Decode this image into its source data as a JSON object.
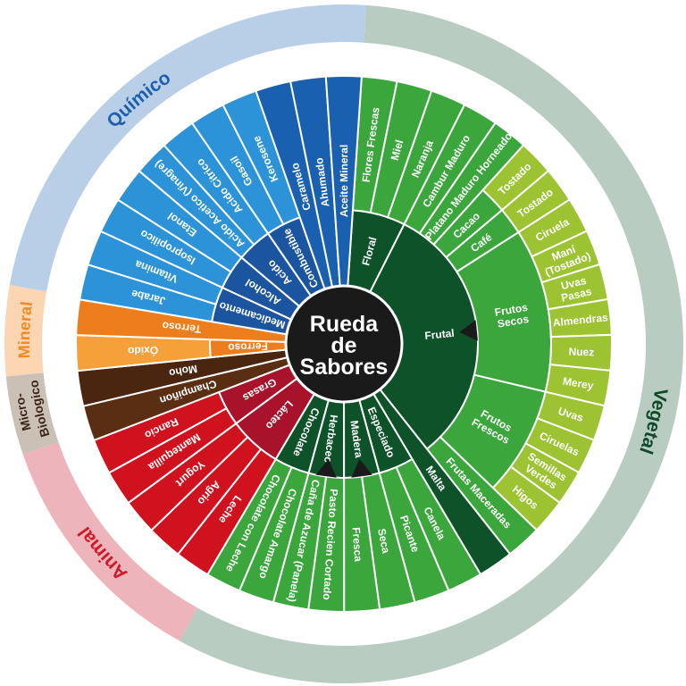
{
  "wheel": {
    "title": [
      "Rueda",
      "de",
      "Sabores"
    ],
    "title_color": "#1a1a1a",
    "families": [
      {
        "label": "Vegetal",
        "color": "#b8ccc1",
        "text_color": "#0e4a2a",
        "from_deg": 3.8,
        "to_deg": 209,
        "label_deg": 104
      },
      {
        "label": "Animal",
        "color": "#eeb4bb",
        "text_color": "#d01a2a",
        "from_deg": 209,
        "to_deg": 251,
        "label_deg": 229
      },
      {
        "label": "Micro-\nBiologico",
        "color": "#cbc0b6",
        "text_color": "#3a2518",
        "from_deg": 251,
        "to_deg": 264.5,
        "label_deg": 258
      },
      {
        "label": "Mineral",
        "color": "#fcd5b3",
        "text_color": "#f08a24",
        "from_deg": 264.5,
        "to_deg": 280,
        "label_deg": 272.5
      },
      {
        "label": "Químico",
        "color": "#b9cfe7",
        "text_color": "#1f5fb0",
        "from_deg": 280,
        "to_deg": 363.8,
        "label_deg": 320
      }
    ],
    "groups": [
      {
        "label": "Floral",
        "color": "#0e5229",
        "children": [
          {
            "label": "Flores Frescas",
            "color": "#3aa63c"
          },
          {
            "label": "Miel",
            "color": "#3aa63c"
          },
          {
            "label": "Naranja",
            "color": "#3aa63c"
          }
        ]
      },
      {
        "label": "Frutal",
        "color": "#0e5229",
        "marker": true,
        "children": [
          {
            "label": "Cambur Maduro",
            "color": "#3aa63c"
          },
          {
            "label": "Platano Maduro Horneado",
            "color": "#3aa63c"
          },
          {
            "label": "Cacao",
            "color": "#3aa63c",
            "children": [
              {
                "label": "Tostado",
                "color": "#9dc232"
              }
            ]
          },
          {
            "label": "Café",
            "color": "#3aa63c",
            "children": [
              {
                "label": "Tostado",
                "color": "#9dc232"
              }
            ]
          },
          {
            "label": "Frutos\nSecos",
            "color": "#3aa63c",
            "children": [
              {
                "label": "Ciruela",
                "color": "#9dc232"
              },
              {
                "label": "Maní\n(Tostado)",
                "color": "#9dc232"
              },
              {
                "label": "Uvas\nPasas",
                "color": "#9dc232"
              },
              {
                "label": "Almendras",
                "color": "#9dc232"
              },
              {
                "label": "Nuez",
                "color": "#9dc232"
              },
              {
                "label": "Merey",
                "color": "#9dc232"
              }
            ]
          },
          {
            "label": "Frutos\nFrescos",
            "color": "#3aa63c",
            "children": [
              {
                "label": "Uvas",
                "color": "#9dc232"
              },
              {
                "label": "Ciruelas",
                "color": "#9dc232"
              },
              {
                "label": "Semillas\nVerdes",
                "color": "#9dc232"
              },
              {
                "label": "Higos",
                "color": "#9dc232"
              }
            ]
          },
          {
            "label": "Frutas Maceradas",
            "color": "#3aa63c"
          }
        ]
      },
      {
        "label": "Malta",
        "color": "#0e5229"
      },
      {
        "label": "Especiado",
        "color": "#0e5229",
        "children": [
          {
            "label": "Canela",
            "color": "#3aa63c"
          },
          {
            "label": "Picante",
            "color": "#3aa63c"
          }
        ]
      },
      {
        "label": "Madera",
        "color": "#0e5229",
        "marker": true,
        "children": [
          {
            "label": "Seca",
            "color": "#3aa63c"
          },
          {
            "label": "Fresca",
            "color": "#3aa63c"
          }
        ]
      },
      {
        "label": "Herbaceo",
        "color": "#0e5229",
        "marker": true,
        "children": [
          {
            "label": "Pasto Recien Cortado",
            "color": "#3aa63c"
          },
          {
            "label": "Caña de Azucar (Panela)",
            "color": "#3aa63c"
          }
        ]
      },
      {
        "label": "Chocolate",
        "color": "#0e5229",
        "children": [
          {
            "label": "Chocolate Amargo",
            "color": "#3aa63c"
          },
          {
            "label": "Chocolate con Leche",
            "color": "#3aa63c"
          }
        ]
      },
      {
        "label": "Lácteo",
        "color": "#a8122a",
        "children": [
          {
            "label": "Leche",
            "color": "#d0121e"
          },
          {
            "label": "Agrio",
            "color": "#d0121e"
          },
          {
            "label": "Yogurt",
            "color": "#d0121e"
          }
        ]
      },
      {
        "label": "Grasas",
        "color": "#a8122a",
        "children": [
          {
            "label": "Mantequilla",
            "color": "#d0121e"
          },
          {
            "label": "Rancio",
            "color": "#d0121e"
          }
        ]
      },
      {
        "label": "Champiñon",
        "color": "#5a2e12"
      },
      {
        "label": "Moho",
        "color": "#4a2510"
      },
      {
        "label": "Ferroso",
        "color": "#ee7d1c",
        "children": [
          {
            "label": "Óxido",
            "color": "#f6a03a"
          }
        ]
      },
      {
        "label": "Terroso",
        "color": "#ee7d1c"
      },
      {
        "label": "Medicamento",
        "color": "#1b55a0",
        "children": [
          {
            "label": "Jarabe",
            "color": "#2c93d8"
          },
          {
            "label": "Vitamina",
            "color": "#2c93d8"
          }
        ]
      },
      {
        "label": "Alcohol",
        "color": "#1b55a0",
        "children": [
          {
            "label": "Isopropilico",
            "color": "#2c93d8"
          },
          {
            "label": "Etanol",
            "color": "#2c93d8"
          }
        ]
      },
      {
        "label": "Acido",
        "color": "#1b55a0",
        "children": [
          {
            "label": "Acido Acetico (Vinagre)",
            "color": "#2c93d8"
          },
          {
            "label": "Acido Citrico",
            "color": "#2c93d8"
          }
        ]
      },
      {
        "label": "Combustible",
        "color": "#1b55a0",
        "children": [
          {
            "label": "Gasoil",
            "color": "#2c93d8"
          },
          {
            "label": "Kerosene",
            "color": "#2c93d8"
          }
        ]
      },
      {
        "label": "Caramelo",
        "color": "#1a60b0"
      },
      {
        "label": "Ahumado",
        "color": "#1a60b0"
      },
      {
        "label": "Aceite Mineral",
        "color": "#1a60b0"
      }
    ]
  }
}
